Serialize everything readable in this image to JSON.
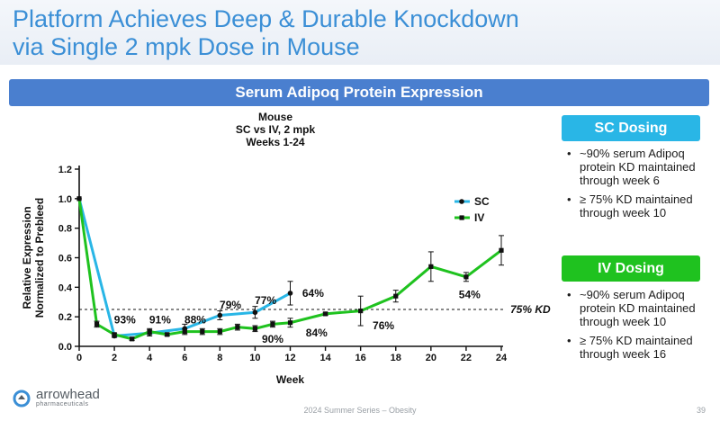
{
  "slide": {
    "title_line1": "Platform Achieves Deep & Durable Knockdown",
    "title_line2": "via Single 2 mpk Dose in Mouse",
    "banner": "Serum Adipoq Protein Expression"
  },
  "sc_box": {
    "heading": "SC Dosing",
    "color": "#29b6e6",
    "bullets": [
      "~90% serum Adipoq protein KD maintained through week 6",
      "≥ 75% KD maintained through week 10"
    ]
  },
  "iv_box": {
    "heading": "IV Dosing",
    "color": "#1fc21f",
    "bullets": [
      "~90% serum Adipoq protein KD maintained through week 10",
      "≥ 75% KD maintained through week 16"
    ]
  },
  "footer": {
    "brand": "arrowhead",
    "brand_sub": "pharmaceuticals",
    "event": "2024 Summer Series – Obesity",
    "page": "39"
  },
  "chart_data": {
    "type": "line",
    "title_lines": [
      "Mouse",
      "SC vs IV, 2 mpk",
      "Weeks 1-24"
    ],
    "xlabel": "Week",
    "ylabel_lines": [
      "Relative Expression",
      "Normalized to Prebleed"
    ],
    "xlim": [
      0,
      24
    ],
    "ylim": [
      0,
      1.2
    ],
    "xticks": [
      "0",
      "2",
      "4",
      "6",
      "8",
      "10",
      "12",
      "14",
      "16",
      "18",
      "20",
      "22",
      "24"
    ],
    "yticks": [
      "0.0",
      "0.2",
      "0.4",
      "0.6",
      "0.8",
      "1.0",
      "1.2"
    ],
    "threshold": {
      "value": 0.25,
      "label": "75% KD"
    },
    "series": [
      {
        "name": "SC",
        "color": "#29b6e6",
        "x": [
          0,
          2,
          4,
          6,
          8,
          10,
          12
        ],
        "y": [
          1.0,
          0.07,
          0.09,
          0.12,
          0.21,
          0.23,
          0.36
        ],
        "err": [
          0,
          0.01,
          0.02,
          0.03,
          0.03,
          0.04,
          0.08
        ]
      },
      {
        "name": "IV",
        "color": "#1fc21f",
        "x": [
          0,
          1,
          2,
          3,
          4,
          5,
          6,
          7,
          8,
          9,
          10,
          11,
          12,
          14,
          16,
          18,
          20,
          22,
          24
        ],
        "y": [
          1.0,
          0.15,
          0.08,
          0.05,
          0.1,
          0.08,
          0.1,
          0.1,
          0.1,
          0.13,
          0.12,
          0.15,
          0.16,
          0.22,
          0.24,
          0.34,
          0.54,
          0.47,
          0.65
        ],
        "err": [
          0,
          0.02,
          0.01,
          0.01,
          0.02,
          0.01,
          0.02,
          0.02,
          0.02,
          0.02,
          0.02,
          0.02,
          0.03,
          0.01,
          0.1,
          0.04,
          0.1,
          0.03,
          0.1
        ]
      }
    ],
    "annotations": [
      {
        "text": "93%",
        "x": 2.6,
        "y": 0.18
      },
      {
        "text": "91%",
        "x": 4.6,
        "y": 0.18
      },
      {
        "text": "88%",
        "x": 6.6,
        "y": 0.18
      },
      {
        "text": "79%",
        "x": 8.6,
        "y": 0.28
      },
      {
        "text": "77%",
        "x": 10.6,
        "y": 0.31
      },
      {
        "text": "64%",
        "x": 13.3,
        "y": 0.36
      },
      {
        "text": "90%",
        "x": 11.0,
        "y": 0.05
      },
      {
        "text": "84%",
        "x": 13.5,
        "y": 0.09
      },
      {
        "text": "76%",
        "x": 17.3,
        "y": 0.14
      },
      {
        "text": "54%",
        "x": 22.2,
        "y": 0.35
      }
    ]
  }
}
